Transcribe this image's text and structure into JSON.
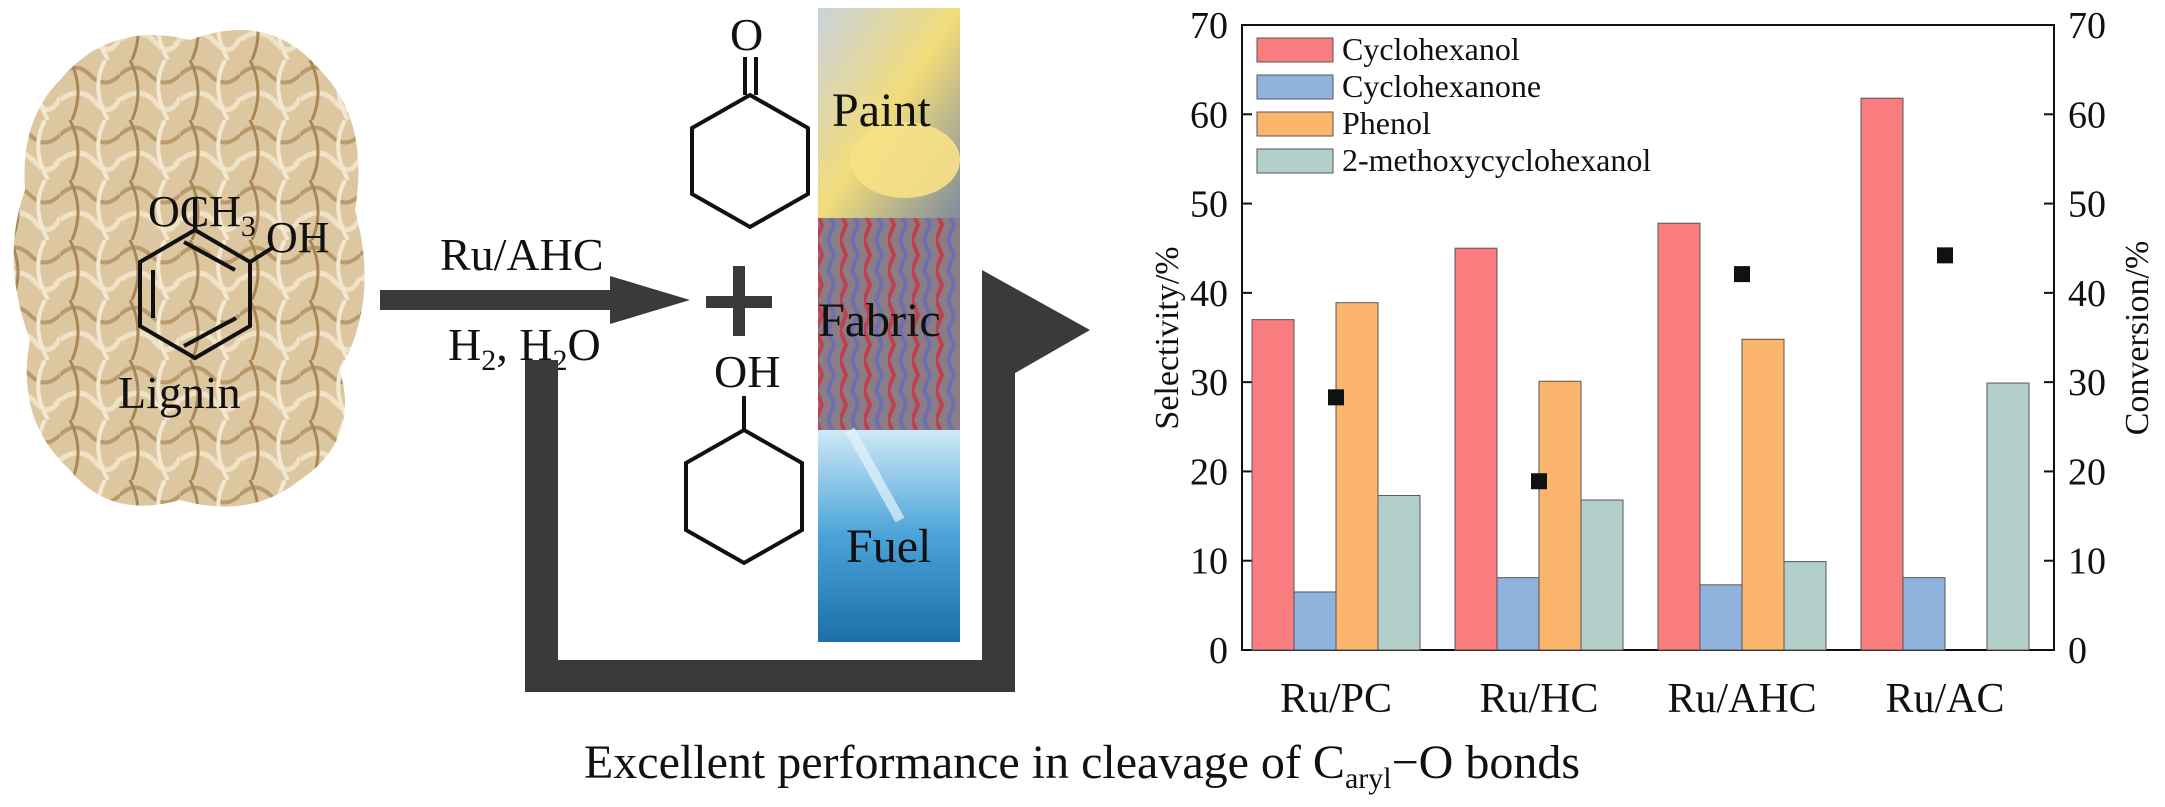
{
  "scheme": {
    "reactant_labels": {
      "methoxy": "OCH",
      "methoxy_sub": "3",
      "hydroxyl": "OH",
      "source": "Lignin"
    },
    "catalyst": "Ru/AHC",
    "conditions": {
      "h": "H",
      "sub1": "2",
      "mid": ", H",
      "sub2": "2",
      "o": "O"
    },
    "product_labels": {
      "ketone_o": "O",
      "plus": "+",
      "alcohol_oh": "OH"
    },
    "applications": [
      "Paint",
      "Fabric",
      "Fuel"
    ],
    "caption": {
      "before": "Excellent performance in cleavage of C",
      "sub": "aryl",
      "after": "−O bonds"
    }
  },
  "colors": {
    "cyclohexanol": "#f97c7f",
    "cyclohexanone": "#8fb3dc",
    "phenol": "#fcb56c",
    "methoxycyclohexanol": "#b3cfca",
    "arrow": "#3a3a3a",
    "lignin": "#d8c29a"
  },
  "chart_data": {
    "type": "bar",
    "categories": [
      "Ru/PC",
      "Ru/HC",
      "Ru/AHC",
      "Ru/AC"
    ],
    "series": [
      {
        "name": "Cyclohexanol",
        "values": [
          37,
          45,
          47.8,
          61.8
        ]
      },
      {
        "name": "Cyclohexanone",
        "values": [
          6.5,
          8.1,
          7.3,
          8.1
        ]
      },
      {
        "name": "Phenol",
        "values": [
          38.9,
          30.1,
          34.8,
          0
        ]
      },
      {
        "name": "2-methoxycyclohexanol",
        "values": [
          17.3,
          16.8,
          9.9,
          29.9
        ]
      }
    ],
    "conversion": [
      28.3,
      18.9,
      42.1,
      44.2
    ],
    "ylabel": "Selectivity/%",
    "y2label": "Conversion/%",
    "ylim": [
      0,
      70
    ],
    "y2lim": [
      0,
      70
    ],
    "yticks": [
      0,
      10,
      20,
      30,
      40,
      50,
      60,
      70
    ],
    "legend_position": "top-left",
    "grid": false
  }
}
